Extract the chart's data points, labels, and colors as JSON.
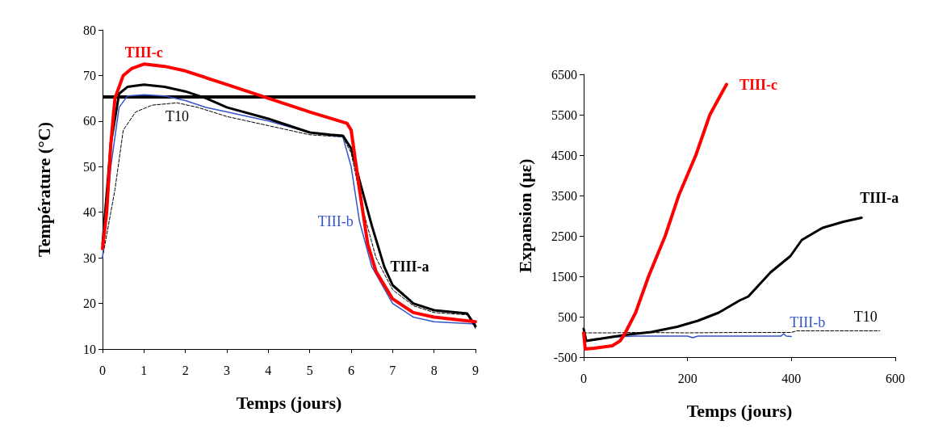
{
  "chart_data": [
    {
      "type": "line",
      "xlabel": "Temps (jours)",
      "ylabel": "Température (°C)",
      "xlim": [
        0,
        9
      ],
      "xticks": [
        0,
        1,
        2,
        3,
        4,
        5,
        6,
        7,
        8,
        9
      ],
      "ylim": [
        10,
        80
      ],
      "yticks": [
        10,
        20,
        30,
        40,
        50,
        60,
        70,
        80
      ],
      "grid": false,
      "legend": false,
      "marker": "none",
      "ref_lines": [
        {
          "axis": "y",
          "value": 65.3,
          "color": "#000000"
        }
      ],
      "series": [
        {
          "name": "TIII-c",
          "color": "#ff0000",
          "x": [
            0,
            0.1,
            0.2,
            0.3,
            0.5,
            0.7,
            1,
            1.5,
            2,
            3,
            4,
            5,
            5.9,
            6,
            6.2,
            6.4,
            6.6,
            7,
            7.5,
            8,
            9
          ],
          "values": [
            32,
            40,
            55,
            65,
            70,
            71.5,
            72.5,
            72,
            71,
            68,
            65,
            62,
            59.5,
            58,
            45,
            33,
            27,
            21,
            18,
            17,
            16
          ]
        },
        {
          "name": "TIII-a",
          "color": "#000000",
          "x": [
            0,
            0.2,
            0.4,
            0.6,
            1,
            1.5,
            2,
            2.5,
            3,
            4,
            5,
            5.5,
            5.8,
            6,
            6.2,
            6.5,
            6.8,
            7,
            7.5,
            8,
            8.8,
            9
          ],
          "values": [
            33,
            55,
            66,
            67.5,
            68,
            67.5,
            66.5,
            65,
            63,
            60.5,
            57.5,
            57,
            56.8,
            54,
            47,
            37,
            28,
            24,
            20,
            18.5,
            17.8,
            15
          ]
        },
        {
          "name": "TIII-b",
          "color": "#3355cc",
          "x": [
            0,
            0.2,
            0.4,
            0.6,
            1,
            1.5,
            2,
            2.5,
            3,
            4,
            5,
            5.8,
            6,
            6.2,
            6.5,
            7,
            7.5,
            8,
            9
          ],
          "values": [
            30,
            50,
            63,
            65.5,
            65.8,
            65.5,
            64.5,
            63,
            62,
            60,
            57.5,
            56.5,
            50,
            38,
            28,
            20,
            17,
            16,
            15.5
          ]
        },
        {
          "name": "T10",
          "color": "#000000",
          "line_style": "dashed",
          "x": [
            0,
            0.3,
            0.5,
            0.8,
            1.2,
            1.8,
            2.3,
            3,
            4,
            5,
            5.8,
            6,
            6.3,
            6.6,
            7,
            7.5,
            8,
            8.8,
            9
          ],
          "values": [
            30,
            45,
            58,
            62,
            63.5,
            64,
            63,
            61,
            59,
            57,
            56.5,
            53,
            40,
            30,
            23,
            19.5,
            18,
            17.5,
            14.5
          ]
        }
      ]
    },
    {
      "type": "line",
      "xlabel": "Temps (jours)",
      "ylabel": "Expansion (με)",
      "xlim": [
        0,
        600
      ],
      "xticks": [
        0,
        200,
        400,
        600
      ],
      "ylim": [
        -500,
        6500
      ],
      "yticks": [
        -500,
        500,
        1500,
        2500,
        3500,
        4500,
        5500,
        6500
      ],
      "grid": false,
      "legend": false,
      "marker": "none",
      "series": [
        {
          "name": "TIII-c",
          "color": "#ff0000",
          "x": [
            0,
            3,
            20,
            55,
            70,
            78,
            100,
            125,
            157,
            183,
            216,
            243,
            260,
            275
          ],
          "values": [
            100,
            -300,
            -280,
            -220,
            -100,
            50,
            600,
            1500,
            2500,
            3500,
            4500,
            5500,
            5900,
            6250
          ]
        },
        {
          "name": "TIII-a",
          "color": "#000000",
          "x": [
            0,
            5,
            30,
            80,
            130,
            180,
            220,
            260,
            300,
            317,
            360,
            398,
            420,
            460,
            500,
            535
          ],
          "values": [
            200,
            -100,
            -50,
            50,
            120,
            250,
            400,
            600,
            900,
            1000,
            1600,
            2000,
            2400,
            2700,
            2850,
            2950
          ]
        },
        {
          "name": "TIII-b",
          "color": "#3355cc",
          "x": [
            0,
            20,
            60,
            100,
            200,
            210,
            220,
            380,
            385,
            390,
            400
          ],
          "values": [
            -100,
            -50,
            0,
            20,
            20,
            -20,
            20,
            20,
            80,
            20,
            10
          ]
        },
        {
          "name": "T10",
          "color": "#000000",
          "line_style": "dashed",
          "x": [
            0,
            50,
            100,
            200,
            300,
            400,
            410,
            570
          ],
          "values": [
            100,
            100,
            110,
            100,
            110,
            110,
            150,
            150
          ]
        }
      ]
    }
  ]
}
